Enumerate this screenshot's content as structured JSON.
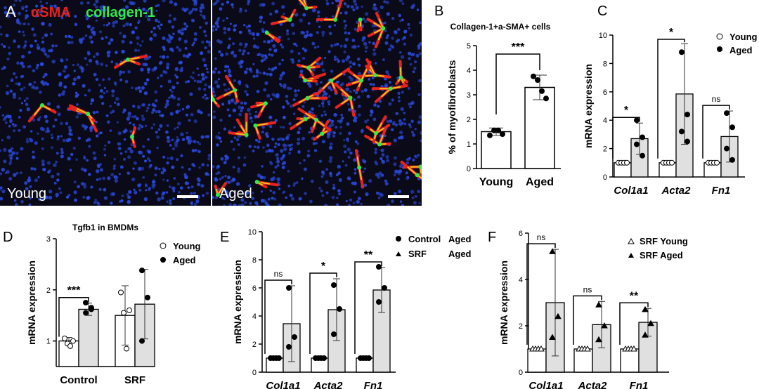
{
  "panel_a": {
    "letter": "A",
    "stain_red": "αSMA",
    "stain_green": "collagen-1",
    "young_label": "Young",
    "aged_label": "Aged",
    "colors": {
      "nuclei": "#2a48d8",
      "red": "#e8221e",
      "green": "#38e84a",
      "yellow": "#f0c020"
    }
  },
  "chart_data": [
    {
      "panel": "B",
      "type": "bar",
      "title": "Collagen-1+a-SMA+ cells",
      "ylabel": "% of myofibroblasts",
      "ylim": [
        0,
        5
      ],
      "yticks": [
        0,
        1,
        2,
        3,
        4,
        5
      ],
      "categories": [
        "Young",
        "Aged"
      ],
      "series": [
        {
          "values": [
            1.5,
            3.3
          ],
          "sd": [
            0.15,
            0.5
          ]
        }
      ],
      "points": [
        [
          1.35,
          1.55,
          1.55,
          1.4
        ],
        [
          3.75,
          3.6,
          3.15,
          2.85
        ]
      ],
      "significance": [
        "***"
      ],
      "colors": [
        "#ffffff",
        "#ffffff"
      ]
    },
    {
      "panel": "C",
      "type": "bar",
      "ylabel": "mRNA expression",
      "ylim": [
        0,
        10
      ],
      "yticks": [
        0,
        2,
        4,
        6,
        8,
        10
      ],
      "categories": [
        "Col1a1",
        "Acta2",
        "Fn1"
      ],
      "series": [
        {
          "name": "Young",
          "values": [
            1.0,
            1.0,
            1.0
          ],
          "sd": [
            0.05,
            0.05,
            0.05
          ]
        },
        {
          "name": "Aged",
          "values": [
            2.7,
            5.85,
            2.85
          ],
          "sd": [
            1.1,
            3.55,
            1.8
          ]
        }
      ],
      "points_young": [
        [
          1,
          1,
          1,
          1
        ],
        [
          1,
          1,
          1,
          1
        ],
        [
          1,
          1,
          1,
          1
        ]
      ],
      "points_aged": [
        [
          4.0,
          2.8,
          2.3,
          1.5
        ],
        [
          8.8,
          4.4,
          3.2,
          2.5
        ],
        [
          4.5,
          3.5,
          2.0,
          1.2
        ]
      ],
      "significance": [
        "*",
        "*",
        "ns"
      ],
      "legend": {
        "young": "Young",
        "aged": "Aged"
      },
      "colors": [
        "#ffffff",
        "#e0e0e0"
      ]
    },
    {
      "panel": "D",
      "type": "bar",
      "title": "Tgfb1 in BMDMs",
      "ylabel": "mRNA expression",
      "ylim": [
        0.5,
        3.0
      ],
      "yticks": [
        1,
        2,
        3
      ],
      "categories": [
        "Control",
        "SRF"
      ],
      "series": [
        {
          "name": "Young",
          "values": [
            1.0,
            1.5
          ],
          "sd": [
            0.07,
            0.58
          ]
        },
        {
          "name": "Aged",
          "values": [
            1.62,
            1.72
          ],
          "sd": [
            0.12,
            0.68
          ]
        }
      ],
      "points_young": [
        [
          1.05,
          0.95,
          0.9,
          1.0
        ],
        [
          1.95,
          1.55,
          0.85,
          1.6
        ]
      ],
      "points_aged": [
        [
          1.75,
          1.65,
          1.55,
          1.62
        ],
        [
          2.38,
          1.85,
          1.0
        ]
      ],
      "significance": [
        "***"
      ],
      "legend": {
        "young": "Young",
        "aged": "Aged"
      },
      "colors": [
        "#ffffff",
        "#e0e0e0"
      ]
    },
    {
      "panel": "E",
      "type": "bar",
      "ylabel": "mRNA expression",
      "ylim": [
        0,
        10
      ],
      "yticks": [
        0,
        2,
        4,
        6,
        8,
        10
      ],
      "categories": [
        "Col1a1",
        "Acta2",
        "Fn1"
      ],
      "series": [
        {
          "name": "Control Aged",
          "values": [
            1.0,
            1.0,
            1.0
          ],
          "sd": [
            0.05,
            0.05,
            0.05
          ]
        },
        {
          "name": "SRF Aged",
          "values": [
            3.45,
            4.45,
            5.85
          ],
          "sd": [
            2.7,
            2.2,
            1.6
          ]
        }
      ],
      "points_young": [
        [
          1,
          1,
          1,
          1
        ],
        [
          1,
          1,
          1,
          1
        ],
        [
          1,
          1,
          1,
          1
        ]
      ],
      "points_aged": [
        [
          6.0,
          2.5,
          1.8
        ],
        [
          6.2,
          4.5,
          2.7
        ],
        [
          7.5,
          6.0,
          5.0
        ]
      ],
      "significance": [
        "ns",
        "*",
        "**"
      ],
      "legend": {
        "a_name": "Control",
        "a_group": "Aged",
        "b_name": "SRF",
        "b_group": "Aged"
      },
      "colors": [
        "#ffffff",
        "#e0e0e0"
      ]
    },
    {
      "panel": "F",
      "type": "bar",
      "ylabel": "mRNA expression",
      "ylim": [
        0,
        6
      ],
      "yticks": [
        0,
        2,
        4,
        6
      ],
      "categories": [
        "Col1a1",
        "Acta2",
        "Fn1"
      ],
      "series": [
        {
          "name": "SRF Young",
          "values": [
            1.0,
            1.0,
            1.0
          ],
          "sd": [
            0.05,
            0.05,
            0.05
          ]
        },
        {
          "name": "SRF Aged",
          "values": [
            3.0,
            2.05,
            2.15
          ],
          "sd": [
            2.3,
            1.0,
            0.6
          ]
        }
      ],
      "points_young": [
        [
          1,
          1,
          1,
          1
        ],
        [
          1,
          1,
          1,
          1
        ],
        [
          1,
          1,
          1,
          1
        ]
      ],
      "points_aged": [
        [
          5.2,
          2.4,
          1.5
        ],
        [
          2.9,
          2.0,
          1.4
        ],
        [
          2.7,
          2.1,
          1.6
        ]
      ],
      "significance": [
        "ns",
        "ns",
        "**"
      ],
      "legend": {
        "young": "SRF Young",
        "aged": "SRF Aged"
      },
      "colors": [
        "#ffffff",
        "#e0e0e0"
      ]
    }
  ]
}
